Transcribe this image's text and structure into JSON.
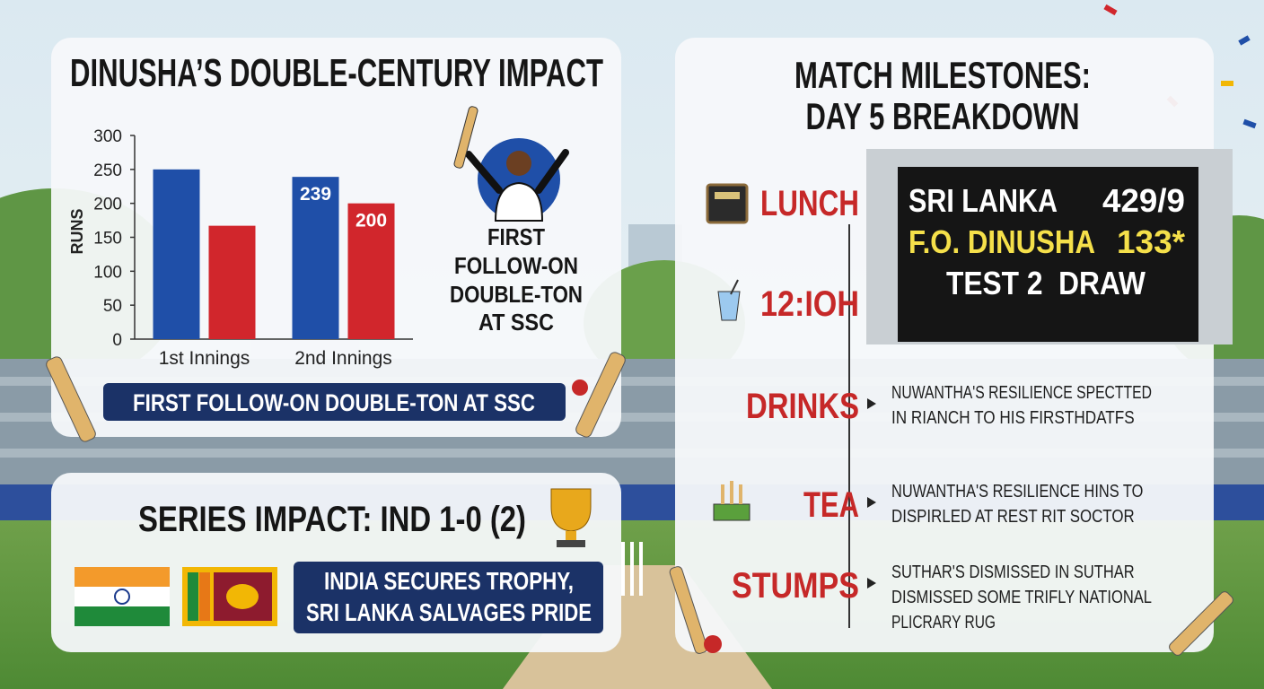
{
  "chart_data": {
    "type": "bar",
    "title": "DINUSHA’S DOUBLE-CENTURY IMPACT",
    "y_label": "RUNS",
    "categories": [
      "1st Innings",
      "2nd Innings"
    ],
    "series": [
      {
        "color": "#1f4fa8",
        "values": [
          250,
          239
        ],
        "value_labels": [
          null,
          "239"
        ]
      },
      {
        "color": "#d1262c",
        "values": [
          167,
          200
        ],
        "value_labels": [
          null,
          "200"
        ]
      }
    ],
    "ylim": [
      0,
      300
    ],
    "yticks": [
      0,
      50,
      100,
      150,
      200,
      250,
      300
    ]
  },
  "highlight": {
    "lines": [
      "FIRST",
      "FOLLOW-ON",
      "DOUBLE-TON",
      "AT SSC"
    ]
  },
  "banner": "FIRST FOLLOW-ON DOUBLE-TON AT SSC",
  "series_panel": {
    "title": "SERIES IMPACT: IND 1-0 (2)",
    "message": [
      "INDIA SECURES TROPHY,",
      "SRI LANKA SALVAGES PRIDE"
    ]
  },
  "milestones": {
    "title": [
      "MATCH MILESTONES:",
      "DAY 5 BREAKDOWN"
    ],
    "scoreboard": {
      "team": "SRI LANKA",
      "score": "429/9",
      "batter": "F.O. DINUSHA",
      "batter_score": "133*",
      "result": "TEST 2  DRAW"
    },
    "timeline": [
      {
        "label": "LUNCH"
      },
      {
        "label": "12:IOH"
      },
      {
        "label": "DRINKS",
        "lines": [
          "NUWANTHA'S RESILIENCE SPECTTED",
          "IN RIANCH TO HIS FIRSTHDATFS"
        ]
      },
      {
        "label": "TEA",
        "lines": [
          "NUWANTHA'S RESILIENCE HINS TO",
          "DISPIRLED AT REST RIT SOCTOR"
        ]
      },
      {
        "label": "STUMPS",
        "lines": [
          "SUTHAR'S DISMISSED IN SUTHAR",
          "DISMISSED SOME TRIFLY NATIONAL",
          "PLICRARY RUG"
        ]
      }
    ]
  }
}
